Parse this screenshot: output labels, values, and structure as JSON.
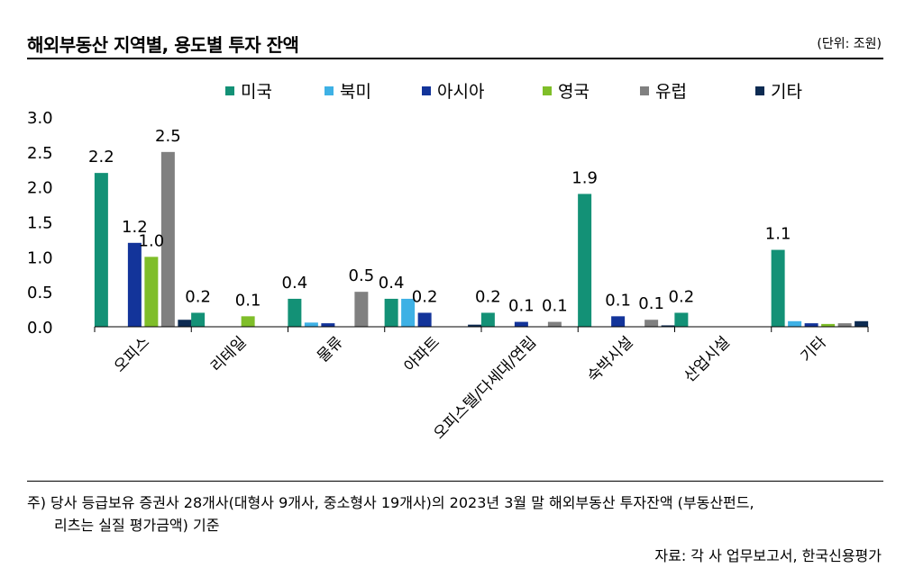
{
  "header": {
    "title": "해외부동산 지역별, 용도별 투자 잔액",
    "unit": "(단위: 조원)"
  },
  "footer": {
    "note_line1": "주) 당사 등급보유 증권사 28개사(대형사 9개사, 중소형사 19개사)의 2023년 3월 말 해외부동산 투자잔액 (부동산펀드,",
    "note_line2": "리츠는 실질 평가금액) 기준",
    "source": "자료: 각 사 업무보고서, 한국신용평가"
  },
  "chart_data": {
    "type": "bar",
    "title": "해외부동산 지역별, 용도별 투자 잔액",
    "xlabel": "",
    "ylabel": "",
    "ylim": [
      0,
      3.0
    ],
    "yticks": [
      "0.0",
      "0.5",
      "1.0",
      "1.5",
      "2.0",
      "2.5",
      "3.0"
    ],
    "grid": false,
    "legend_position": "top",
    "categories": [
      "오피스",
      "리테일",
      "물류",
      "아파트",
      "오피스텔/다세대/연립",
      "숙박시설",
      "산업시설",
      "기타"
    ],
    "series": [
      {
        "name": "미국",
        "color": "#139176",
        "values": [
          2.2,
          0.2,
          0.4,
          0.4,
          0.2,
          1.9,
          0.2,
          1.1
        ],
        "labels": [
          "2.2",
          "0.2",
          "0.4",
          "0.4",
          "0.2",
          "1.9",
          "0.2",
          "1.1"
        ]
      },
      {
        "name": "북미",
        "color": "#3eb1e5",
        "values": [
          0,
          0,
          0.06,
          0.4,
          0,
          0,
          0,
          0.08
        ],
        "labels": [
          "",
          "",
          "",
          "",
          "",
          "",
          "",
          ""
        ]
      },
      {
        "name": "아시아",
        "color": "#13349a",
        "values": [
          1.2,
          0,
          0.05,
          0.2,
          0.07,
          0.15,
          0,
          0.05
        ],
        "labels": [
          "1.2",
          "",
          "",
          "0.2",
          "0.1",
          "0.1",
          "",
          ""
        ]
      },
      {
        "name": "영국",
        "color": "#7fbe29",
        "values": [
          1.0,
          0.15,
          0,
          0,
          0,
          0,
          0,
          0.04
        ],
        "labels": [
          "1.0",
          "0.1",
          "",
          "",
          "",
          "",
          "",
          ""
        ]
      },
      {
        "name": "유럽",
        "color": "#808080",
        "values": [
          2.5,
          0,
          0.5,
          0,
          0.07,
          0.1,
          0,
          0.05
        ],
        "labels": [
          "2.5",
          "",
          "0.5",
          "",
          "0.1",
          "0.1",
          "",
          ""
        ]
      },
      {
        "name": "기타",
        "color": "#0d2b52",
        "values": [
          0.1,
          0,
          0,
          0.03,
          0,
          0.02,
          0,
          0.08
        ],
        "labels": [
          "",
          "",
          "",
          "",
          "",
          "",
          "",
          ""
        ]
      }
    ]
  }
}
